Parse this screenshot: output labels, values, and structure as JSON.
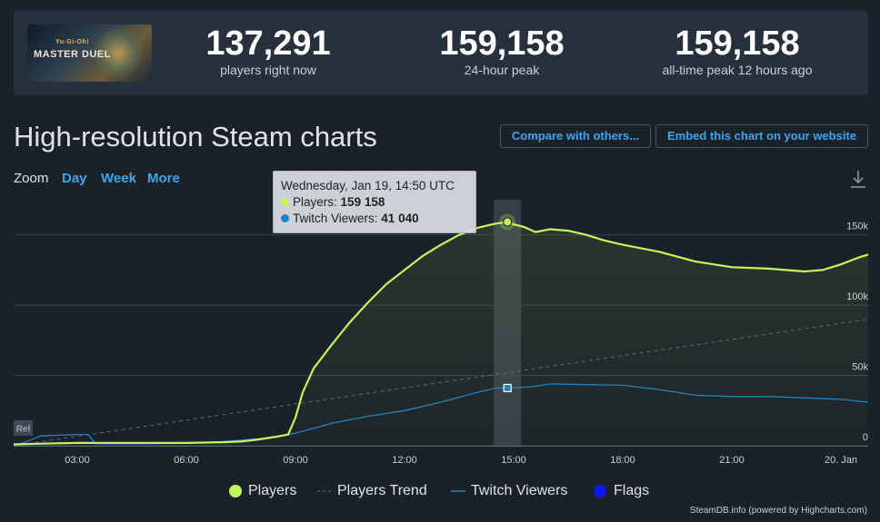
{
  "header": {
    "game_logo_text_top": "Yu-Gi-Oh!",
    "game_logo_text_main": "MASTER DUEL",
    "stats": [
      {
        "value": "137,291",
        "label": "players right now"
      },
      {
        "value": "159,158",
        "label": "24-hour peak"
      },
      {
        "value": "159,158",
        "label": "all-time peak 12 hours ago"
      }
    ]
  },
  "page_title": "High-resolution Steam charts",
  "buttons": {
    "compare": "Compare with others...",
    "embed": "Embed this chart on your website"
  },
  "zoom": {
    "label": "Zoom",
    "options": [
      "Day",
      "Week",
      "More"
    ]
  },
  "tooltip": {
    "date": "Wednesday, Jan 19, 14:50 UTC",
    "players_label": "Players:",
    "players_value": "159 158",
    "twitch_label": "Twitch Viewers:",
    "twitch_value": "41 040"
  },
  "flag_marker": "Rel",
  "credits": "SteamDB.info (powered by Highcharts.com)",
  "colors": {
    "players": "#c3f55c",
    "twitch": "#1e83c7",
    "trend": "#5e6a78",
    "flags": "#0b18f5",
    "grid": "#3a4350",
    "link": "#3ea5ee"
  },
  "chart_data": {
    "type": "line",
    "title": "High-resolution Steam charts",
    "x_unit": "hours since 00:00 Jan 19 (UTC)",
    "xlim": [
      1.25,
      24.75
    ],
    "ylim": [
      0,
      175000
    ],
    "y_ticks": [
      0,
      50000,
      100000,
      150000
    ],
    "y_tick_labels": [
      "0",
      "50k",
      "100k",
      "150k"
    ],
    "x_ticks": [
      3,
      6,
      9,
      12,
      15,
      18,
      21,
      24
    ],
    "x_tick_labels": [
      "03:00",
      "06:00",
      "09:00",
      "12:00",
      "15:00",
      "18:00",
      "21:00",
      "20. Jan"
    ],
    "highlight_x": 14.83,
    "legend": [
      "Players",
      "Players Trend",
      "Twitch Viewers",
      "Flags"
    ],
    "series": [
      {
        "name": "Players",
        "x": [
          1.25,
          2,
          3,
          4,
          5,
          6,
          7,
          7.5,
          8,
          8.5,
          8.8,
          9,
          9.2,
          9.5,
          10,
          10.5,
          11,
          11.5,
          12,
          12.5,
          13,
          13.5,
          14,
          14.5,
          14.83,
          15,
          15.3,
          15.6,
          16,
          16.5,
          17,
          17.5,
          18,
          19,
          20,
          21,
          22,
          23,
          23.5,
          24,
          24.5,
          24.75
        ],
        "y": [
          1000,
          1500,
          2000,
          2000,
          2000,
          2000,
          2500,
          3000,
          4500,
          6500,
          8000,
          20000,
          38000,
          55000,
          72000,
          88000,
          102000,
          115000,
          125000,
          135000,
          143000,
          150000,
          155000,
          158000,
          159158,
          157500,
          155500,
          152000,
          154000,
          153000,
          150000,
          146000,
          143000,
          138000,
          131000,
          127000,
          126000,
          124000,
          125000,
          129000,
          134000,
          136000
        ]
      },
      {
        "name": "Players Trend",
        "x": [
          1.25,
          24.75
        ],
        "y": [
          0,
          90000
        ]
      },
      {
        "name": "Twitch Viewers",
        "x": [
          1.25,
          1.5,
          1.8,
          2,
          2.5,
          3,
          3.3,
          3.5,
          4,
          5,
          6,
          7,
          8,
          9,
          10,
          11,
          12,
          13,
          14,
          14.5,
          14.83,
          15.5,
          16,
          17,
          18,
          19,
          20,
          21,
          22,
          23,
          24,
          24.75
        ],
        "y": [
          0,
          2000,
          5000,
          7000,
          7500,
          8000,
          8000,
          1500,
          1500,
          1500,
          2000,
          3000,
          5000,
          9000,
          16000,
          21000,
          25000,
          31000,
          38000,
          41000,
          41040,
          42000,
          44000,
          43500,
          43000,
          40000,
          36000,
          35000,
          35000,
          34000,
          33000,
          31000
        ]
      }
    ]
  }
}
